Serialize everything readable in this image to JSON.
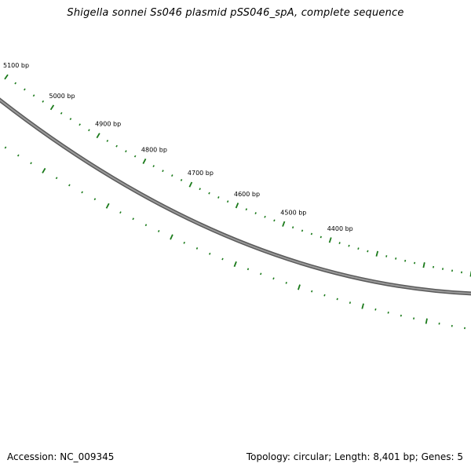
{
  "title": "Shigella sonnei Ss046 plasmid pSS046_spA, complete sequence",
  "footer": {
    "accession": "Accession: NC_009345",
    "summary": "Topology: circular; Length: 8,401 bp; Genes: 5"
  },
  "map": {
    "backbone_color": "#808080",
    "tick_color": "#1a7a1a",
    "ruler_labels": [
      {
        "label": "5100 bp",
        "position_bp": 5100
      },
      {
        "label": "5000 bp",
        "position_bp": 5000
      },
      {
        "label": "4900 bp",
        "position_bp": 4900
      },
      {
        "label": "4800 bp",
        "position_bp": 4800
      },
      {
        "label": "4700 bp",
        "position_bp": 4700
      },
      {
        "label": "4600 bp",
        "position_bp": 4600
      },
      {
        "label": "4500 bp",
        "position_bp": 4500
      },
      {
        "label": "4400 bp",
        "position_bp": 4400
      }
    ]
  }
}
